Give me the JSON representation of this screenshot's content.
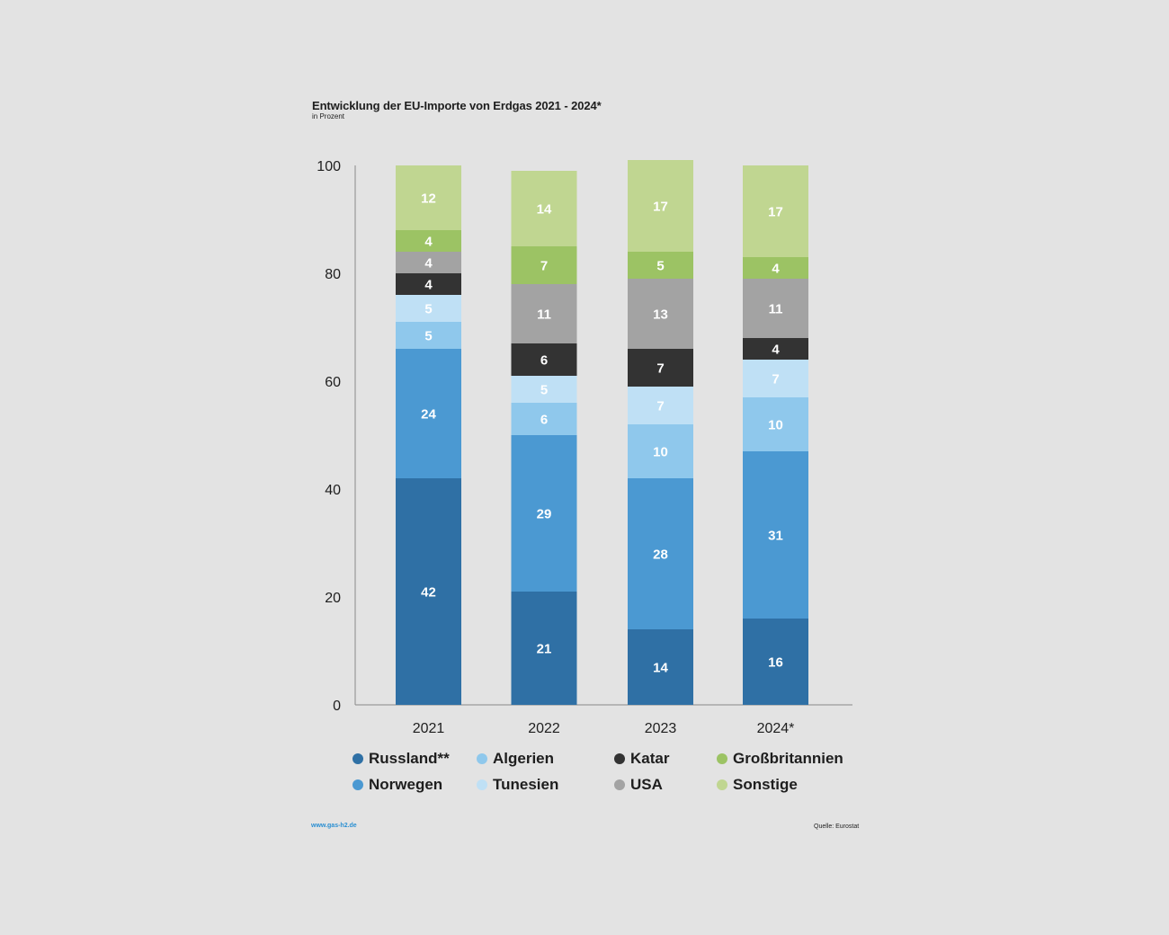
{
  "title": "Entwicklung der EU-Importe von Erdgas 2021 - 2024*",
  "subtitle": "in Prozent",
  "footer": {
    "website": "www.gas-h2.de",
    "source": "Quelle: Eurostat"
  },
  "chart_data": {
    "type": "bar",
    "stacked": true,
    "title": "Entwicklung der EU-Importe von Erdgas 2021 - 2024*",
    "subtitle": "in Prozent",
    "ylim": [
      0,
      100
    ],
    "yticks": [
      0,
      20,
      40,
      60,
      80,
      100
    ],
    "grid": false,
    "legend_position": "bottom",
    "categories": [
      "2021",
      "2022",
      "2023",
      "2024*"
    ],
    "series": [
      {
        "name": "Russland**",
        "color": "#2f70a5",
        "values": [
          42,
          21,
          14,
          16
        ]
      },
      {
        "name": "Norwegen",
        "color": "#4b99d2",
        "values": [
          24,
          29,
          28,
          31
        ]
      },
      {
        "name": "Algerien",
        "color": "#8fc8ec",
        "values": [
          5,
          6,
          10,
          10
        ]
      },
      {
        "name": "Tunesien",
        "color": "#bfe0f5",
        "values": [
          5,
          5,
          7,
          7
        ]
      },
      {
        "name": "Katar",
        "color": "#333333",
        "values": [
          4,
          6,
          7,
          4
        ]
      },
      {
        "name": "USA",
        "color": "#a3a3a3",
        "values": [
          4,
          11,
          13,
          11
        ]
      },
      {
        "name": "Großbritannien",
        "color": "#9cc364",
        "values": [
          4,
          7,
          5,
          4
        ]
      },
      {
        "name": "Sonstige",
        "color": "#c0d691",
        "values": [
          12,
          14,
          17,
          17
        ]
      }
    ]
  },
  "legend": [
    [
      {
        "label": "Russland**",
        "color": "#2f70a5"
      },
      {
        "label": "Algerien",
        "color": "#8fc8ec"
      },
      {
        "label": "Katar",
        "color": "#333333"
      },
      {
        "label": "Großbritannien",
        "color": "#9cc364"
      }
    ],
    [
      {
        "label": "Norwegen",
        "color": "#4b99d2"
      },
      {
        "label": "Tunesien",
        "color": "#bfe0f5"
      },
      {
        "label": "USA",
        "color": "#a3a3a3"
      },
      {
        "label": "Sonstige",
        "color": "#c0d691"
      }
    ]
  ]
}
